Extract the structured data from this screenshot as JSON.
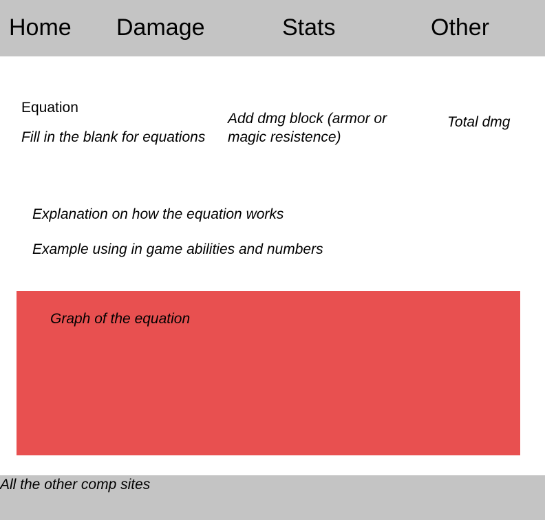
{
  "nav": {
    "home": "Home",
    "damage": "Damage",
    "stats": "Stats",
    "other": "Other"
  },
  "equation": {
    "title": "Equation",
    "fill_blank": "Fill in the blank for equations",
    "dmg_block_line1": "Add dmg block (armor or",
    "dmg_block_line2": "magic resistence)",
    "total_dmg": "Total dmg"
  },
  "info": {
    "explanation": "Explanation on how the equation works",
    "example": "Example using in game abilities and numbers"
  },
  "graph": {
    "label": "Graph of the equation",
    "color": "#e85050"
  },
  "footer": {
    "link": "All the other comp sites"
  },
  "colors": {
    "bar": "#c4c4c4",
    "background": "#ffffff",
    "text": "#000000"
  }
}
